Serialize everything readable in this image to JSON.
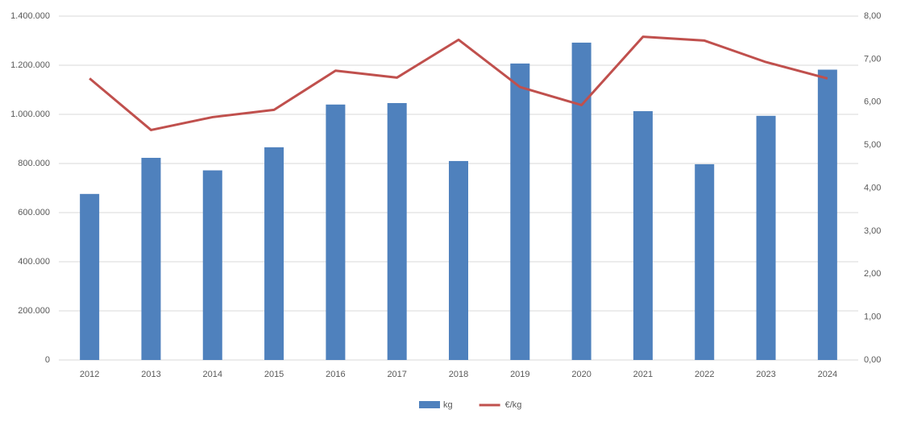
{
  "chart_data": {
    "type": "bar-line",
    "categories": [
      "2012",
      "2013",
      "2014",
      "2015",
      "2016",
      "2017",
      "2018",
      "2019",
      "2020",
      "2021",
      "2022",
      "2023",
      "2024"
    ],
    "series": [
      {
        "name": "kg",
        "type": "bar",
        "color": "#4f81bd",
        "values": [
          676000,
          823000,
          772000,
          866000,
          1040000,
          1046000,
          810000,
          1207000,
          1292000,
          1013000,
          797000,
          994000,
          1182000
        ]
      },
      {
        "name": "€/kg",
        "type": "line",
        "axis": "y2",
        "color": "#c0504d",
        "values": [
          6.55,
          5.35,
          5.65,
          5.82,
          6.73,
          6.57,
          7.45,
          6.35,
          5.93,
          7.52,
          7.43,
          6.93,
          6.55
        ]
      }
    ],
    "ylim": [
      0,
      1400000
    ],
    "yticks": [
      0,
      {
        "value": 200000,
        "label": "200.000"
      },
      {
        "value": 400000,
        "label": "400.000"
      },
      {
        "value": 600000,
        "label": "600.000"
      },
      {
        "value": 800000,
        "label": "800.000"
      },
      {
        "value": 1000000,
        "label": "1.000.000"
      },
      {
        "value": 1200000,
        "label": "1.200.000"
      },
      {
        "value": 1400000,
        "label": "1.400.000"
      }
    ],
    "y2lim": [
      0,
      8
    ],
    "y2ticks": [
      {
        "value": 0,
        "label": "0,00"
      },
      {
        "value": 1,
        "label": "1,00"
      },
      {
        "value": 2,
        "label": "2,00"
      },
      {
        "value": 3,
        "label": "3,00"
      },
      {
        "value": 4,
        "label": "4,00"
      },
      {
        "value": 5,
        "label": "5,00"
      },
      {
        "value": 6,
        "label": "6,00"
      },
      {
        "value": 7,
        "label": "7,00"
      },
      {
        "value": 8,
        "label": "8,00"
      }
    ],
    "grid": true,
    "legend": "bottom"
  }
}
